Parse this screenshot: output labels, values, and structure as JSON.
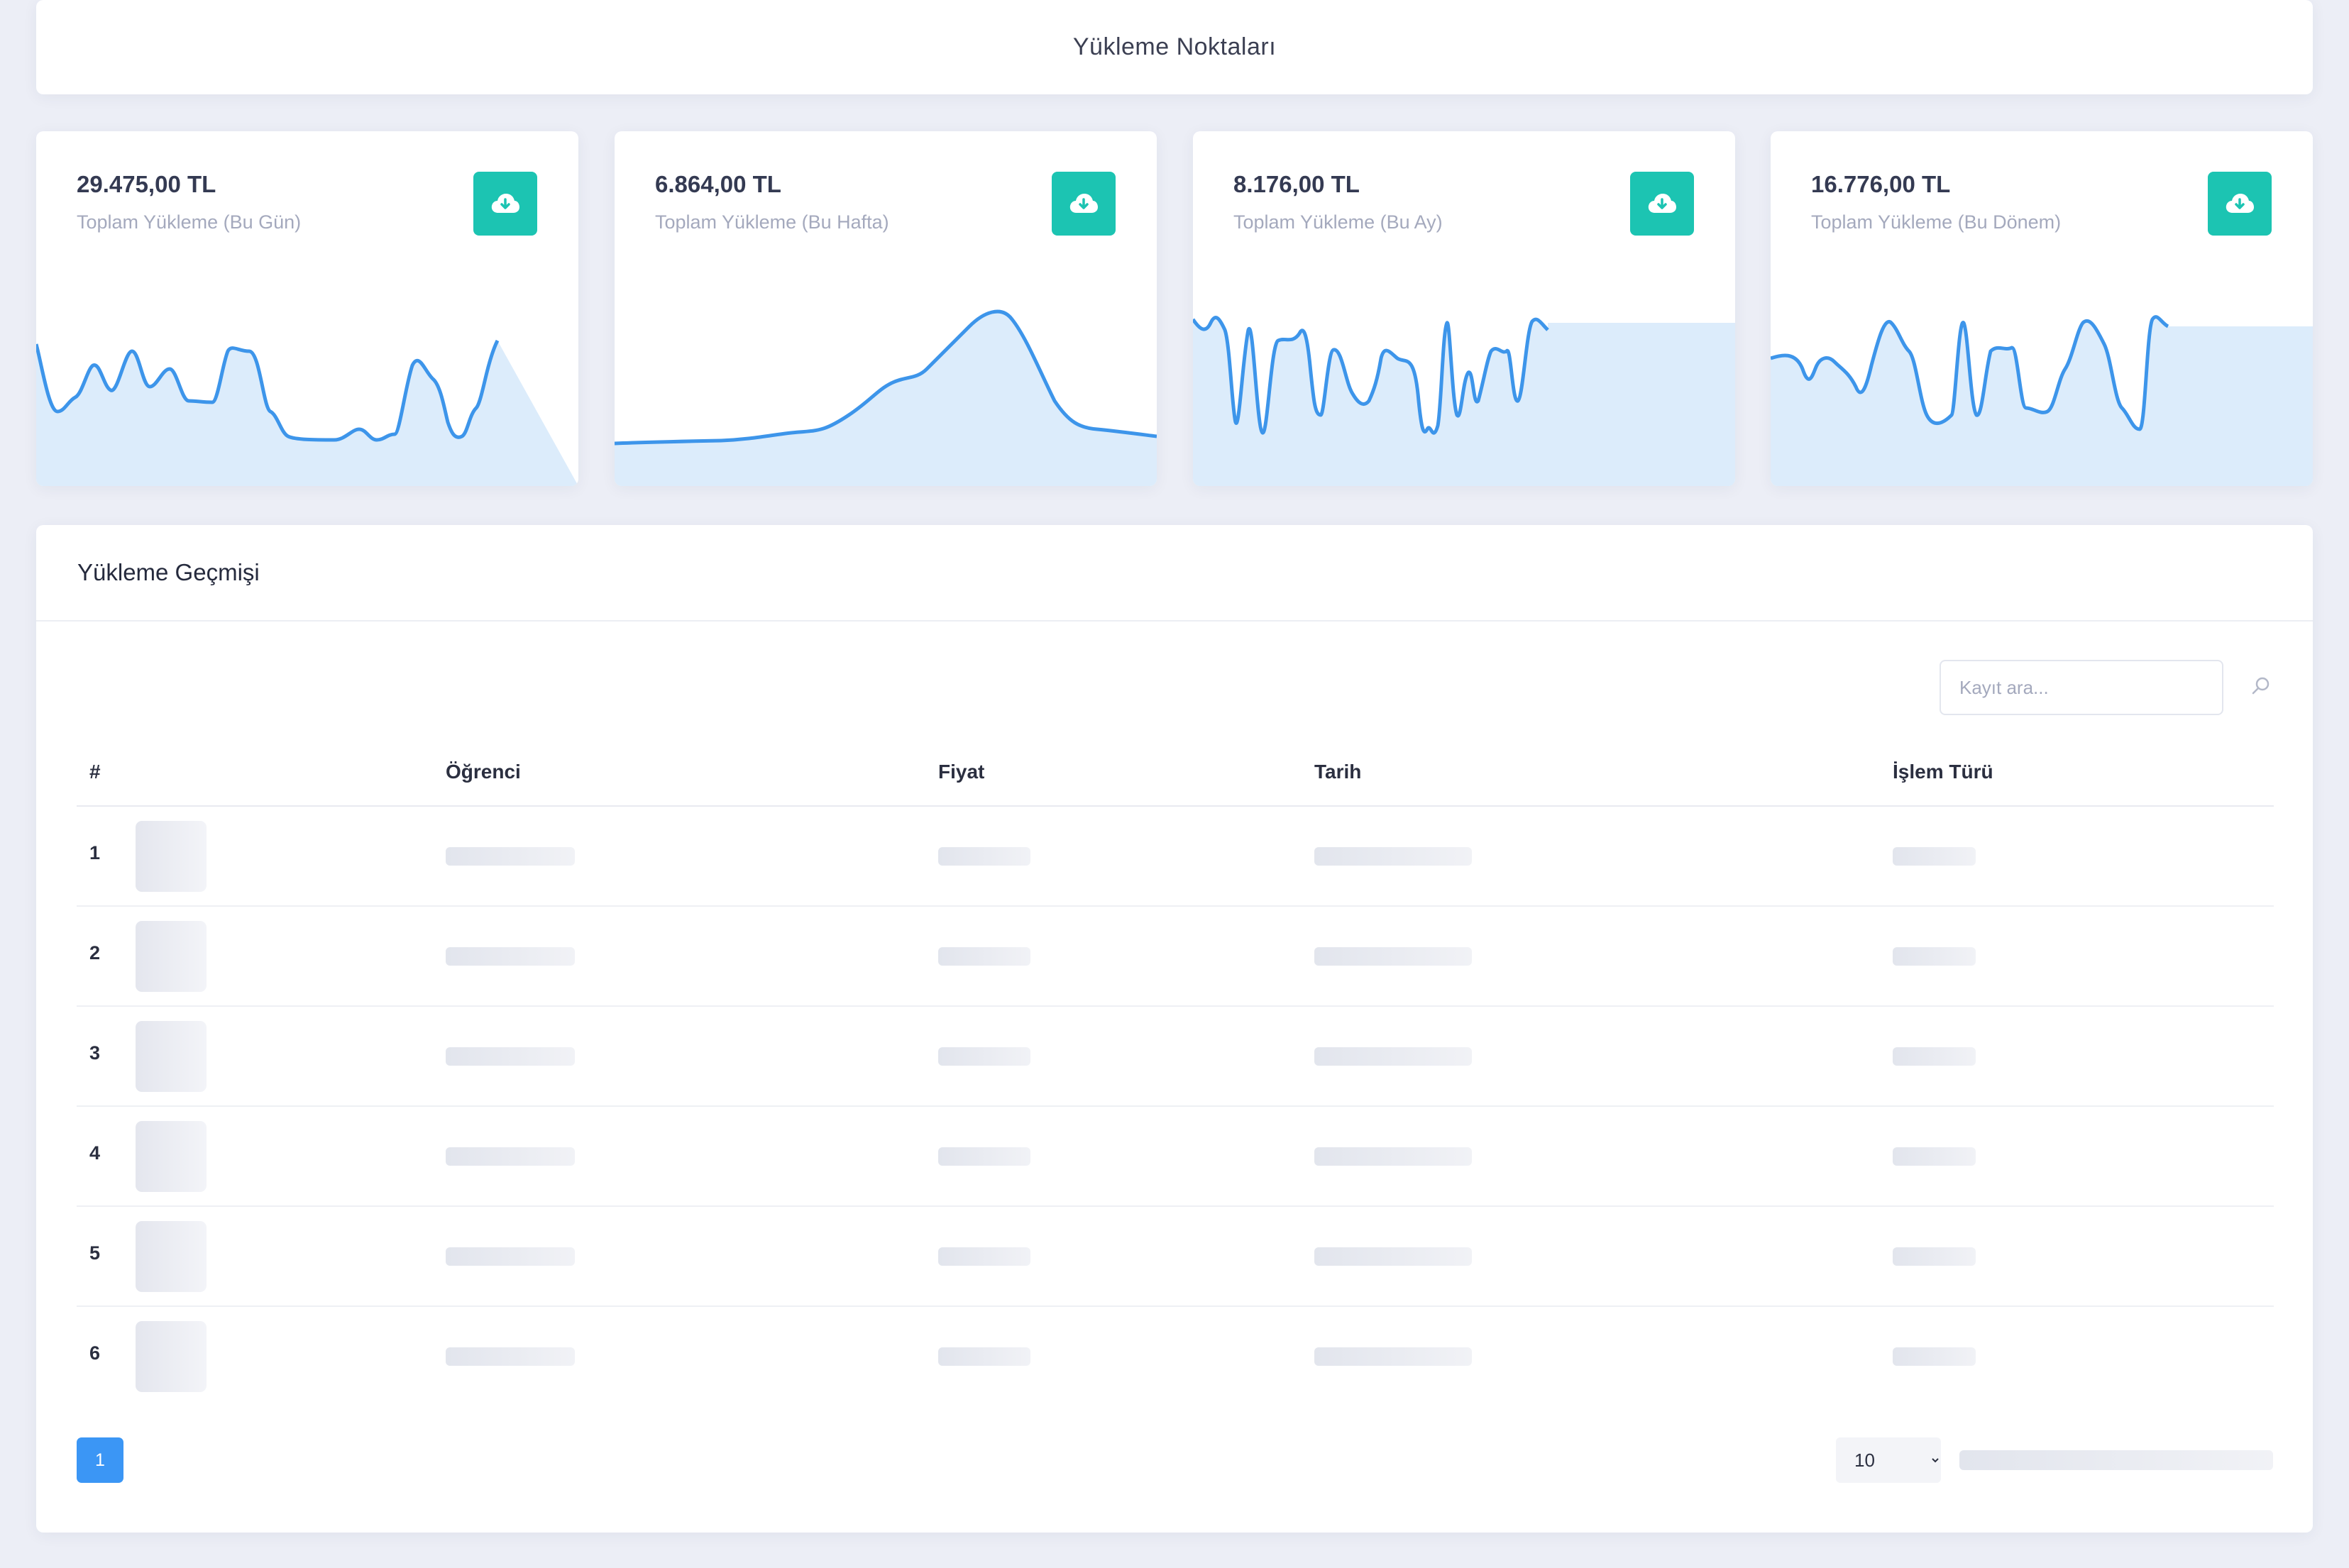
{
  "header": {
    "title": "Yükleme Noktaları"
  },
  "stats": [
    {
      "value": "29.475,00 TL",
      "label": "Toplam Yükleme (Bu Gün)",
      "icon": "cloud-download-icon"
    },
    {
      "value": "6.864,00 TL",
      "label": "Toplam Yükleme (Bu Hafta)",
      "icon": "cloud-download-icon"
    },
    {
      "value": "8.176,00 TL",
      "label": "Toplam Yükleme (Bu Ay)",
      "icon": "cloud-download-icon"
    },
    {
      "value": "16.776,00 TL",
      "label": "Toplam Yükleme (Bu Dönem)",
      "icon": "cloud-download-icon"
    }
  ],
  "colors": {
    "accent": "#1cc4b2",
    "primary": "#3b96f5",
    "spark_line": "#3d95ea",
    "spark_fill": "#dcecfb"
  },
  "history": {
    "title": "Yükleme Geçmişi",
    "search_placeholder": "Kayıt ara...",
    "columns": [
      "#",
      "Öğrenci",
      "Fiyat",
      "Tarih",
      "İşlem Türü"
    ],
    "rows": [
      "1",
      "2",
      "3",
      "4",
      "5",
      "6"
    ],
    "page": "1",
    "page_size": "10"
  }
}
